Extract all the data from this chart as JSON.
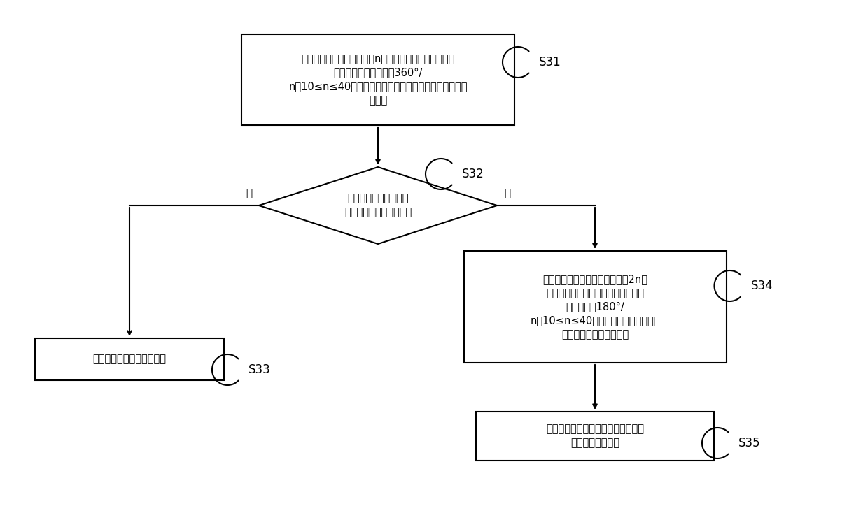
{
  "bg_color": "#ffffff",
  "line_color": "#000000",
  "box_color": "#ffffff",
  "text_color": "#000000",
  "font_size": 11,
  "label_font_size": 12,
  "s31_text": "以第二中心点为起点，构建n条检测射线，其中，相邻两\n条检测射线间的夹角为360°/\nn，10≤n≤40，第一中心点和第二中心点的连线与检测射\n线垂直",
  "s32_text": "判断各检测射线是否均\n与牙弓模型的外壁面相交",
  "s33_text": "将检测射线设置为第一射线",
  "s34_text": "以第二中心点为起点，重新构建2n条\n检测射线，其中，相邻两条检测射线\n间的夹角为180°/\nn，10≤n≤40，第一中心点和第二中心\n点的连线与检测射线垂直",
  "s35_text": "将与牙弓模型的外壁面相交的检测射\n线设置为第一射线",
  "yes_label": "是",
  "no_label": "否",
  "s31_label": "S31",
  "s32_label": "S32",
  "s33_label": "S33",
  "s34_label": "S34",
  "s35_label": "S35"
}
